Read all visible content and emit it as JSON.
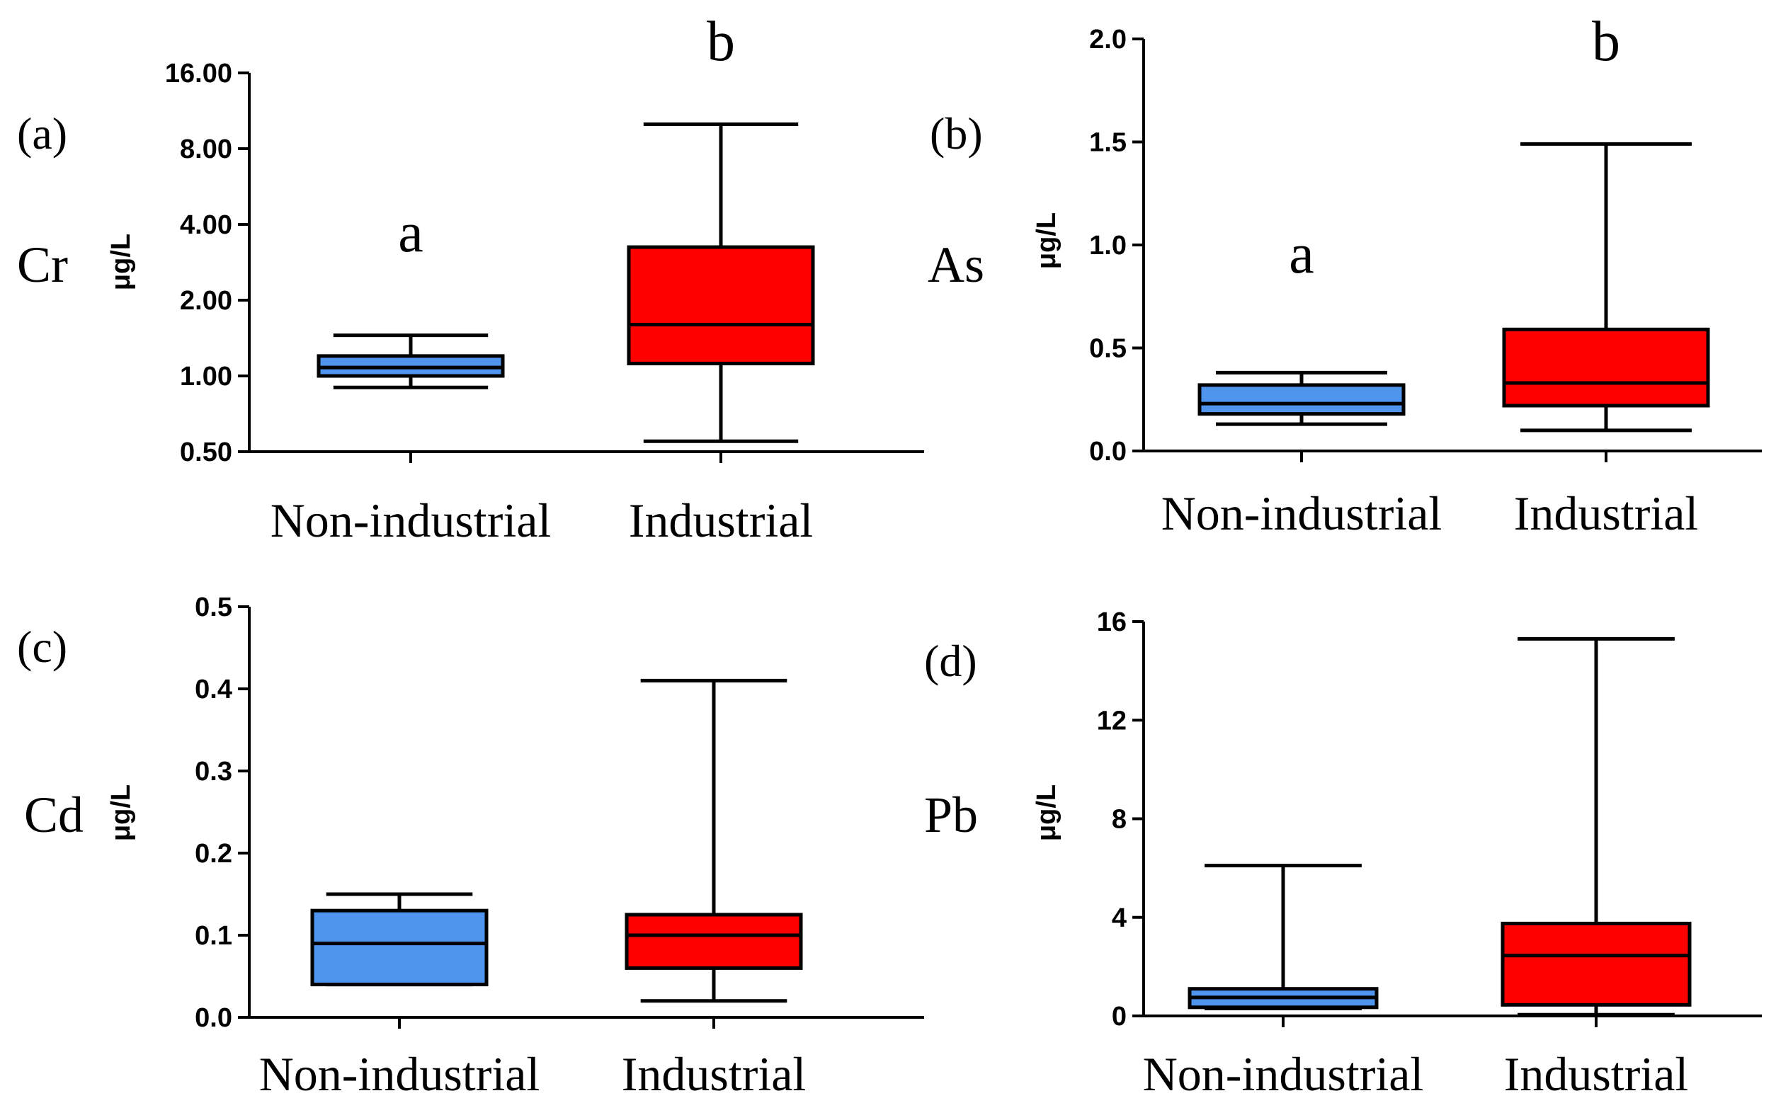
{
  "chart_data": [
    {
      "type": "box",
      "panel": "(a)",
      "element": "Cr",
      "ylabel": "μg/L",
      "yscale": "log2",
      "ylim": [
        0.5,
        16
      ],
      "yticks": [
        0.5,
        1,
        2,
        4,
        8,
        16
      ],
      "ytick_labels": [
        "0.50",
        "1.00",
        "2.00",
        "4.00",
        "8.00",
        "16.00"
      ],
      "categories": [
        "Non-industrial",
        "Industrial"
      ],
      "colors": [
        "#4f95ee",
        "#ff0000"
      ],
      "significance": [
        "a",
        "b"
      ],
      "boxes": [
        {
          "min": 0.9,
          "q1": 1.0,
          "median": 1.08,
          "q3": 1.2,
          "max": 1.45
        },
        {
          "min": 0.55,
          "q1": 1.12,
          "median": 1.6,
          "q3": 3.25,
          "max": 10.0
        }
      ]
    },
    {
      "type": "box",
      "panel": "(b)",
      "element": "As",
      "ylabel": "μg/L",
      "yscale": "linear",
      "ylim": [
        0,
        2.0
      ],
      "yticks": [
        0,
        0.5,
        1.0,
        1.5,
        2.0
      ],
      "ytick_labels": [
        "0.0",
        "0.5",
        "1.0",
        "1.5",
        "2.0"
      ],
      "categories": [
        "Non-industrial",
        "Industrial"
      ],
      "colors": [
        "#4f95ee",
        "#ff0000"
      ],
      "significance": [
        "a",
        "b"
      ],
      "boxes": [
        {
          "min": 0.13,
          "q1": 0.18,
          "median": 0.23,
          "q3": 0.32,
          "max": 0.38
        },
        {
          "min": 0.1,
          "q1": 0.22,
          "median": 0.33,
          "q3": 0.59,
          "max": 1.49
        }
      ]
    },
    {
      "type": "box",
      "panel": "(c)",
      "element": "Cd",
      "ylabel": "μg/L",
      "yscale": "linear",
      "ylim": [
        0,
        0.5
      ],
      "yticks": [
        0,
        0.1,
        0.2,
        0.3,
        0.4,
        0.5
      ],
      "ytick_labels": [
        "0.0",
        "0.1",
        "0.2",
        "0.3",
        "0.4",
        "0.5"
      ],
      "categories": [
        "Non-industrial",
        "Industrial"
      ],
      "colors": [
        "#4f95ee",
        "#ff0000"
      ],
      "significance": [
        "",
        ""
      ],
      "boxes": [
        {
          "min": 0.04,
          "q1": 0.04,
          "median": 0.09,
          "q3": 0.13,
          "max": 0.15
        },
        {
          "min": 0.02,
          "q1": 0.06,
          "median": 0.1,
          "q3": 0.125,
          "max": 0.41
        }
      ]
    },
    {
      "type": "box",
      "panel": "(d)",
      "element": "Pb",
      "ylabel": "μg/L",
      "yscale": "linear",
      "ylim": [
        0,
        16
      ],
      "yticks": [
        0,
        4,
        8,
        12,
        16
      ],
      "ytick_labels": [
        "0",
        "4",
        "8",
        "12",
        "16"
      ],
      "categories": [
        "Non-industrial",
        "Industrial"
      ],
      "colors": [
        "#4f95ee",
        "#ff0000"
      ],
      "significance": [
        "",
        ""
      ],
      "boxes": [
        {
          "min": 0.3,
          "q1": 0.35,
          "median": 0.75,
          "q3": 1.1,
          "max": 6.1
        },
        {
          "min": 0.05,
          "q1": 0.45,
          "median": 2.45,
          "q3": 3.75,
          "max": 15.3
        }
      ]
    }
  ]
}
